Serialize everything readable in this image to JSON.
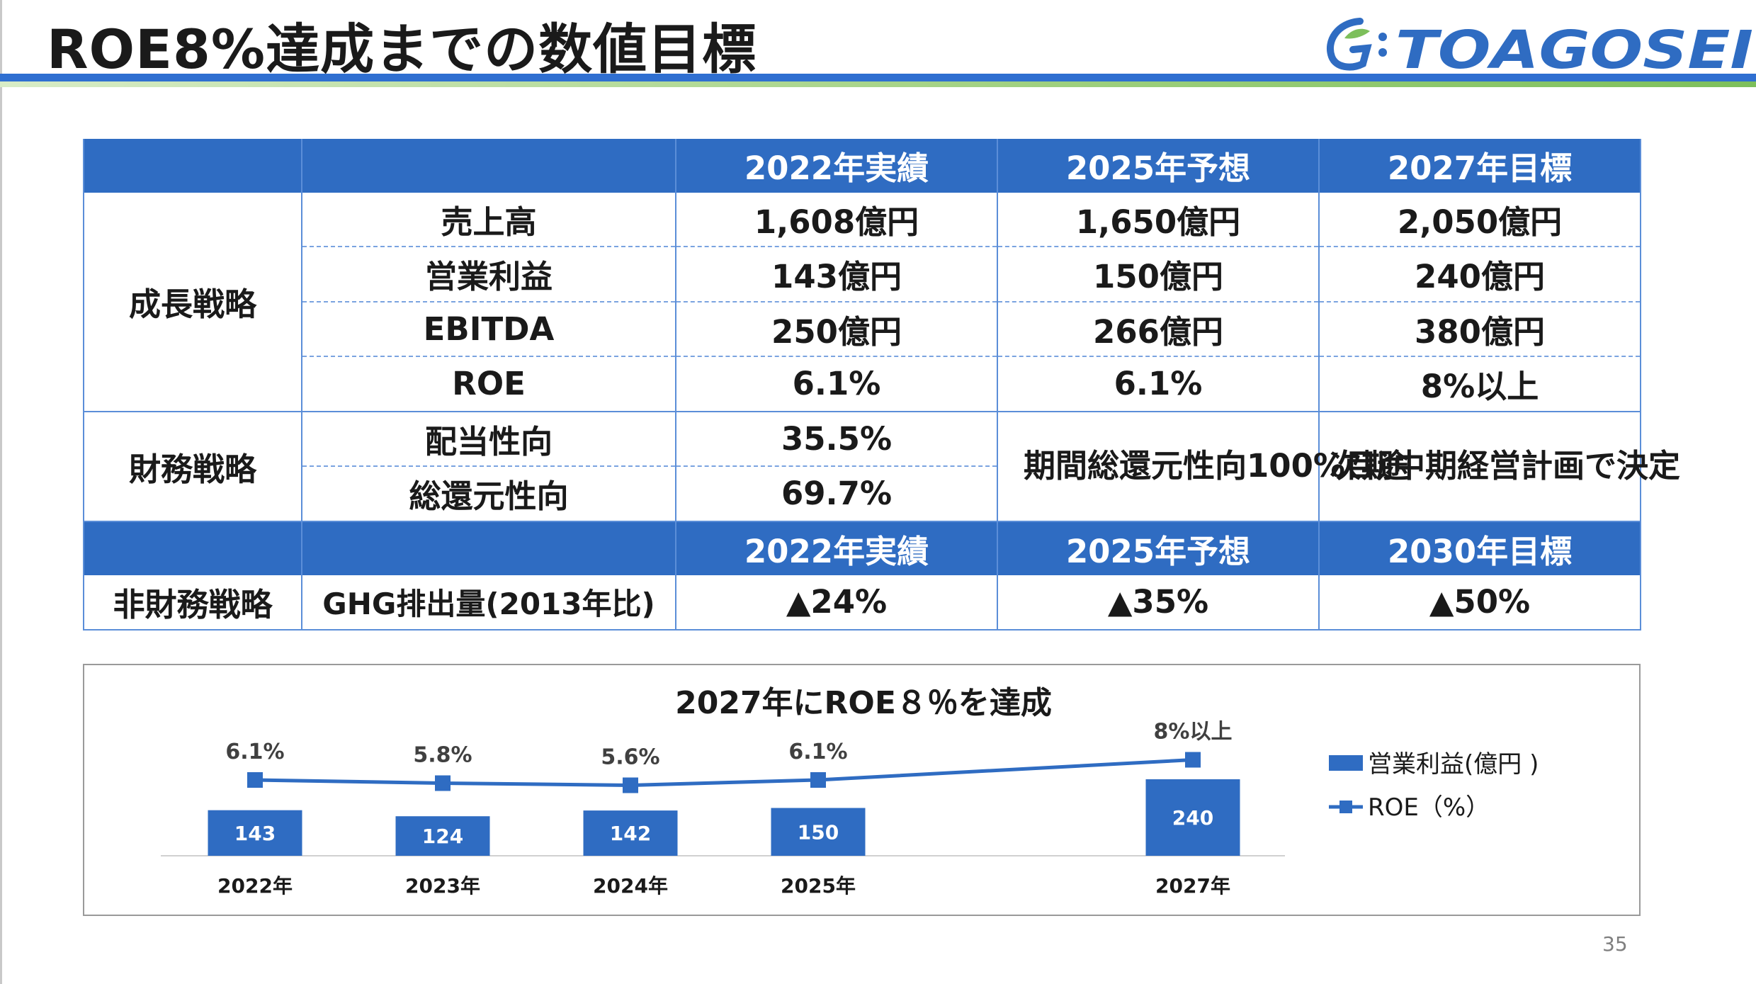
{
  "header": {
    "title": "ROE8%達成までの数値目標",
    "logo_text": "TOAGOSEI",
    "brand_color": "#2F6CC2",
    "accent_green": "#7DBF5B"
  },
  "table": {
    "header1": [
      "",
      "",
      "2022年実績",
      "2025年予想",
      "2027年目標"
    ],
    "growth": {
      "group": "成長戦略",
      "rows": [
        {
          "label": "売上高",
          "v2022": "1,608億円",
          "v2025": "1,650億円",
          "v2027": "2,050億円"
        },
        {
          "label": "営業利益",
          "v2022": "143億円",
          "v2025": "150億円",
          "v2027": "240億円"
        },
        {
          "label": "EBITDA",
          "v2022": "250億円",
          "v2025": "266億円",
          "v2027": "380億円"
        },
        {
          "label": "ROE",
          "v2022": "6.1%",
          "v2025": "6.1%",
          "v2027": "8%以上"
        }
      ]
    },
    "finance": {
      "group": "財務戦略",
      "rows": [
        {
          "label": "配当性向",
          "v2022": "35.5%"
        },
        {
          "label": "総還元性向",
          "v2022": "69.7%"
        }
      ],
      "v2025_merged": "期間総還元性向100%目途",
      "v2027_merged": "次期中期経営計画で決定"
    },
    "header2": [
      "",
      "",
      "2022年実績",
      "2025年予想",
      "2030年目標"
    ],
    "nonfin": {
      "group": "非財務戦略",
      "label": "GHG排出量(2013年比)",
      "v2022": "▲24%",
      "v2025": "▲35%",
      "v2030": "▲50%"
    }
  },
  "chart_data": {
    "type": "bar",
    "title": "2027年にROE８％を達成",
    "categories": [
      "2022年",
      "2023年",
      "2024年",
      "2025年",
      "2027年"
    ],
    "series": [
      {
        "name": "営業利益(億円 )",
        "type": "bar",
        "values": [
          143,
          124,
          142,
          150,
          240
        ],
        "labels": [
          "143",
          "124",
          "142",
          "150",
          "240"
        ],
        "color": "#2F6CC2"
      },
      {
        "name": "ROE（%）",
        "type": "line",
        "values": [
          6.1,
          5.8,
          5.6,
          6.1,
          8.0
        ],
        "labels": [
          "6.1%",
          "5.8%",
          "5.6%",
          "6.1%",
          "8%以上"
        ],
        "color": "#2F6CC2"
      }
    ],
    "legend_position": "right",
    "grid": false
  },
  "page_number": "35"
}
